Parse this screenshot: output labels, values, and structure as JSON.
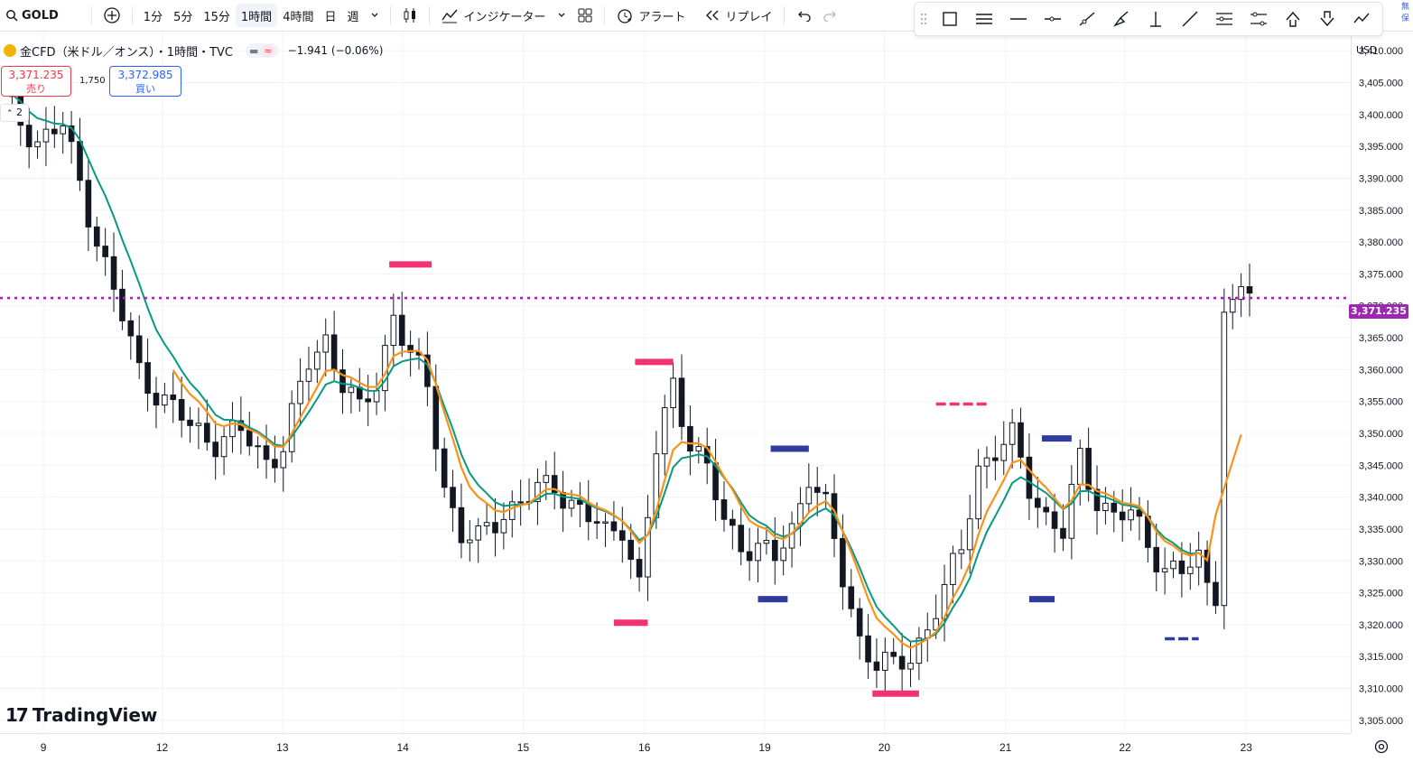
{
  "toolbar": {
    "symbol": "GOLD",
    "intervals": [
      "1分",
      "5分",
      "15分",
      "1時間",
      "4時間",
      "日",
      "週"
    ],
    "active_interval": "1時間",
    "indicators_label": "インジケーター",
    "alert_label": "アラート",
    "replay_label": "リプレイ"
  },
  "drawing_tools": [
    "rectangle-icon",
    "parallel-lines-icon",
    "horizontal-line-icon",
    "horizontal-ray-icon",
    "trend-line-icon",
    "brush-icon",
    "vertical-line-icon",
    "line-icon",
    "fib-icon",
    "price-range-icon",
    "arrow-up-icon",
    "arrow-down-icon",
    "path-icon"
  ],
  "legend": {
    "title": "金CFD（米ドル／オンス）・1時間・TVC",
    "change": "−1.941 (−0.06%)",
    "sell_price": "3,371.235",
    "sell_label": "売り",
    "buy_price": "3,372.985",
    "buy_label": "買い",
    "spread": "1,750",
    "collapse_count": "2"
  },
  "price_axis": {
    "currency": "USD",
    "current_price": "3,371.235",
    "current_color": "#9c27b0"
  },
  "watermark": "TradingView",
  "chart_data": {
    "type": "candlestick",
    "ylim": [
      3303,
      3413
    ],
    "y_ticks": [
      3305,
      3310,
      3315,
      3320,
      3325,
      3330,
      3335,
      3340,
      3345,
      3350,
      3355,
      3360,
      3365,
      3370,
      3375,
      3380,
      3385,
      3390,
      3395,
      3400,
      3405,
      3410
    ],
    "x_ticks": [
      "9",
      "12",
      "13",
      "14",
      "15",
      "16",
      "19",
      "20",
      "21",
      "22",
      "23"
    ],
    "current_price": 3371.235,
    "anchors": [
      [
        0,
        3402
      ],
      [
        4,
        3396
      ],
      [
        7,
        3398
      ],
      [
        10,
        3385
      ],
      [
        13,
        3372
      ],
      [
        16,
        3360
      ],
      [
        19,
        3355
      ],
      [
        22,
        3351
      ],
      [
        25,
        3349
      ],
      [
        28,
        3350
      ],
      [
        31,
        3346
      ],
      [
        33,
        3348
      ],
      [
        36,
        3361
      ],
      [
        38,
        3365
      ],
      [
        40,
        3358
      ],
      [
        42,
        3353
      ],
      [
        44,
        3358
      ],
      [
        46,
        3369
      ],
      [
        48,
        3362
      ],
      [
        50,
        3357
      ],
      [
        52,
        3342
      ],
      [
        54,
        3334
      ],
      [
        56,
        3333
      ],
      [
        59,
        3338
      ],
      [
        62,
        3340
      ],
      [
        65,
        3342
      ],
      [
        68,
        3338
      ],
      [
        71,
        3334
      ],
      [
        73,
        3336
      ],
      [
        75,
        3326
      ],
      [
        77,
        3347
      ],
      [
        79,
        3358
      ],
      [
        81,
        3349
      ],
      [
        83,
        3344
      ],
      [
        85,
        3336
      ],
      [
        87,
        3333
      ],
      [
        89,
        3332
      ],
      [
        91,
        3330
      ],
      [
        93,
        3335
      ],
      [
        95,
        3344
      ],
      [
        97,
        3338
      ],
      [
        99,
        3327
      ],
      [
        101,
        3318
      ],
      [
        103,
        3314
      ],
      [
        105,
        3313
      ],
      [
        107,
        3315
      ],
      [
        109,
        3320
      ],
      [
        111,
        3325
      ],
      [
        113,
        3332
      ],
      [
        115,
        3345
      ],
      [
        117,
        3347
      ],
      [
        119,
        3349
      ],
      [
        121,
        3342
      ],
      [
        123,
        3337
      ],
      [
        125,
        3334
      ],
      [
        127,
        3346
      ],
      [
        129,
        3340
      ],
      [
        131,
        3337
      ],
      [
        133,
        3337
      ],
      [
        135,
        3333
      ],
      [
        137,
        3329
      ],
      [
        139,
        3328
      ],
      [
        141,
        3330
      ],
      [
        143,
        3323
      ],
      [
        144,
        3366
      ],
      [
        146,
        3373
      ],
      [
        148,
        3371
      ]
    ],
    "series": [
      {
        "name": "",
        "color": "#089981",
        "values_source": "moving-average-short"
      },
      {
        "name": "",
        "color": "#f7931a",
        "values_source": "moving-average-long"
      }
    ],
    "markers": [
      {
        "price": 3376.5,
        "color": "#f23274",
        "kind": "resistance"
      },
      {
        "price": 3361.2,
        "color": "#f23274",
        "kind": "resistance"
      },
      {
        "price": 3320.3,
        "color": "#f23274",
        "kind": "support"
      },
      {
        "price": 3347.6,
        "color": "#2f3b9e",
        "kind": "resistance"
      },
      {
        "price": 3324.0,
        "color": "#2f3b9e",
        "kind": "support"
      },
      {
        "price": 3309.2,
        "color": "#f23274",
        "kind": "support"
      },
      {
        "price": 3354.6,
        "color": "#f23274",
        "kind": "resistance-dashed"
      },
      {
        "price": 3349.2,
        "color": "#2f3b9e",
        "kind": "resistance"
      },
      {
        "price": 3324.0,
        "color": "#2f3b9e",
        "kind": "support"
      },
      {
        "price": 3317.8,
        "color": "#2f3b9e",
        "kind": "support-dashed"
      }
    ]
  }
}
